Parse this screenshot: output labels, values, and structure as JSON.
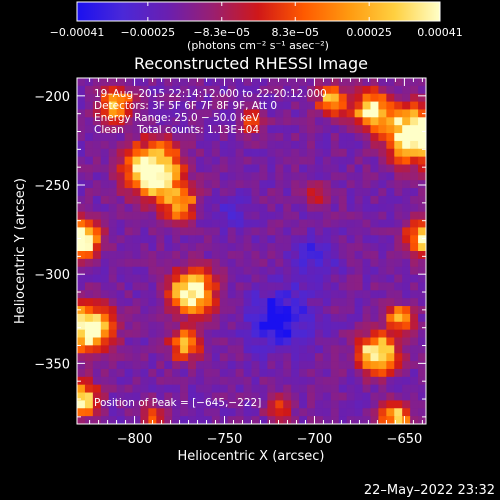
{
  "chart_data": {
    "type": "heatmap",
    "title": "Reconstructed RHESSI Image",
    "xlabel": "Heliocentric X (arcsec)",
    "ylabel": "Heliocentric Y (arcsec)",
    "xlim": [
      -832,
      -638
    ],
    "ylim": [
      -384,
      -190
    ],
    "xticks": [
      -800,
      -750,
      -700,
      -650
    ],
    "yticks": [
      -200,
      -250,
      -300,
      -350
    ],
    "xtick_labels": [
      "−800",
      "−750",
      "−700",
      "−650"
    ],
    "ytick_labels": [
      "−200",
      "−250",
      "−300",
      "−350"
    ],
    "colorbar": {
      "label": "(photons cm⁻² s⁻¹ asec⁻²)",
      "vmin": -0.00041,
      "vmax": 0.00041,
      "tick_values": [
        -0.00041,
        -0.00025,
        -8.3e-05,
        8.3e-05,
        0.00025,
        0.00041
      ],
      "tick_labels": [
        "−0.00041",
        "−0.00025",
        "−8.3e−05",
        "8.3e−05",
        "0.00025",
        "0.00041"
      ],
      "colors": [
        "#1a10f0",
        "#4a28d8",
        "#6a1fb0",
        "#9a1f70",
        "#d01818",
        "#ff5a00",
        "#ff9a10",
        "#ffd040",
        "#ffffc8"
      ]
    },
    "annotations": {
      "time_range": "19–Aug–2015 22:14:12.000 to 22:20:12.000",
      "detectors": "Detectors: 3F 5F 6F 7F 8F 9F, Att 0",
      "energy_range": "Energy Range: 25.0 − 50.0 keV",
      "method_counts": "Clean    Total counts: 1.13E+04",
      "peak": "Position of Peak = [−645,−222]"
    },
    "timestamp": "22–May–2022 23:32",
    "grid": false
  }
}
